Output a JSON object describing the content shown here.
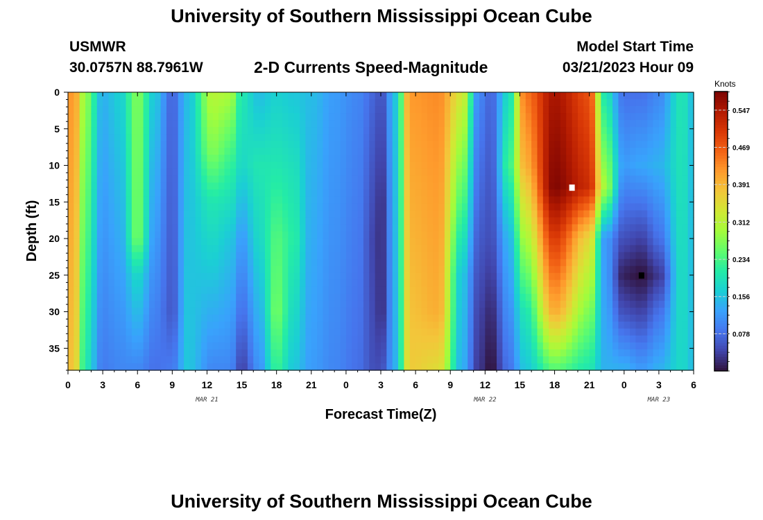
{
  "header": {
    "title": "University of Southern Mississippi Ocean Cube",
    "station": "USMWR",
    "coords": "30.0757N  88.7961W",
    "subtitle": "2-D Currents Speed-Magnitude",
    "model_start_label": "Model Start Time",
    "model_start_value": "03/21/2023 Hour 09"
  },
  "footer": {
    "title": "University of Southern Mississippi Ocean Cube"
  },
  "chart_data": {
    "type": "heatmap",
    "title": "2-D Currents Speed-Magnitude",
    "xlabel": "Forecast Time(Z)",
    "ylabel": "Depth (ft)",
    "x_tick_labels": [
      "0",
      "3",
      "6",
      "9",
      "12",
      "15",
      "18",
      "21",
      "0",
      "3",
      "6",
      "9",
      "12",
      "15",
      "18",
      "21",
      "0",
      "3",
      "6"
    ],
    "x_range_hours": [
      0,
      54
    ],
    "date_labels": [
      {
        "text": "MAR 21",
        "hour": 12
      },
      {
        "text": "MAR 22",
        "hour": 36
      },
      {
        "text": "MAR 23",
        "hour": 51
      }
    ],
    "y_tick_labels": [
      "0",
      "5",
      "10",
      "15",
      "20",
      "25",
      "30",
      "35"
    ],
    "y_range": [
      0,
      38
    ],
    "y_inverted": true,
    "colorbar": {
      "unit": "Knots",
      "range": [
        0,
        0.586
      ],
      "tick_values": [
        0.078,
        0.156,
        0.234,
        0.312,
        0.391,
        0.469,
        0.547
      ],
      "tick_labels": [
        "0.078",
        "0.156",
        "0.234",
        "0.312",
        "0.391",
        "0.469",
        "0.547"
      ],
      "colormap": [
        "#30123b",
        "#4145ab",
        "#4675ed",
        "#39a2fc",
        "#1bcfd4",
        "#24eca6",
        "#61fc6c",
        "#a4fc3b",
        "#d1e834",
        "#f3c63a",
        "#fe9b2d",
        "#f36315",
        "#d93806",
        "#b11901",
        "#7a0402"
      ]
    },
    "speed_nodes": [
      {
        "hour": 0.5,
        "profile": [
          [
            0,
            0.42
          ],
          [
            38,
            0.38
          ]
        ]
      },
      {
        "hour": 1.5,
        "profile": [
          [
            0,
            0.28
          ],
          [
            38,
            0.2
          ]
        ]
      },
      {
        "hour": 3,
        "profile": [
          [
            0,
            0.14
          ],
          [
            38,
            0.09
          ]
        ]
      },
      {
        "hour": 4.5,
        "profile": [
          [
            0,
            0.17
          ],
          [
            38,
            0.1
          ]
        ]
      },
      {
        "hour": 6,
        "profile": [
          [
            0,
            0.27
          ],
          [
            20,
            0.26
          ],
          [
            25,
            0.18
          ],
          [
            38,
            0.1
          ]
        ]
      },
      {
        "hour": 7.5,
        "profile": [
          [
            0,
            0.16
          ],
          [
            38,
            0.08
          ]
        ]
      },
      {
        "hour": 9,
        "profile": [
          [
            0,
            0.07
          ],
          [
            30,
            0.06
          ],
          [
            38,
            0.09
          ]
        ]
      },
      {
        "hour": 10.3,
        "profile": [
          [
            0,
            0.15
          ],
          [
            38,
            0.16
          ]
        ]
      },
      {
        "hour": 12.5,
        "profile": [
          [
            0,
            0.31
          ],
          [
            8,
            0.27
          ],
          [
            15,
            0.2
          ],
          [
            25,
            0.16
          ],
          [
            38,
            0.1
          ]
        ]
      },
      {
        "hour": 14,
        "profile": [
          [
            0,
            0.3
          ],
          [
            10,
            0.22
          ],
          [
            20,
            0.16
          ],
          [
            38,
            0.1
          ]
        ]
      },
      {
        "hour": 15,
        "profile": [
          [
            0,
            0.2
          ],
          [
            10,
            0.18
          ],
          [
            20,
            0.12
          ],
          [
            30,
            0.08
          ],
          [
            38,
            0.04
          ]
        ]
      },
      {
        "hour": 16.5,
        "profile": [
          [
            0,
            0.15
          ],
          [
            10,
            0.2
          ],
          [
            20,
            0.18
          ],
          [
            38,
            0.11
          ]
        ]
      },
      {
        "hour": 18,
        "profile": [
          [
            0,
            0.17
          ],
          [
            10,
            0.2
          ],
          [
            20,
            0.24
          ],
          [
            30,
            0.26
          ],
          [
            38,
            0.22
          ]
        ]
      },
      {
        "hour": 19.5,
        "profile": [
          [
            0,
            0.16
          ],
          [
            10,
            0.19
          ],
          [
            20,
            0.21
          ],
          [
            38,
            0.16
          ]
        ]
      },
      {
        "hour": 21,
        "profile": [
          [
            0,
            0.15
          ],
          [
            38,
            0.12
          ]
        ]
      },
      {
        "hour": 23,
        "profile": [
          [
            0,
            0.12
          ],
          [
            38,
            0.1
          ]
        ]
      },
      {
        "hour": 25,
        "profile": [
          [
            0,
            0.1
          ],
          [
            38,
            0.08
          ]
        ]
      },
      {
        "hour": 26.5,
        "profile": [
          [
            0,
            0.07
          ],
          [
            20,
            0.04
          ],
          [
            38,
            0.05
          ]
        ]
      },
      {
        "hour": 27,
        "profile": [
          [
            0,
            0.05
          ],
          [
            15,
            0.02
          ],
          [
            30,
            0.02
          ],
          [
            38,
            0.05
          ]
        ]
      },
      {
        "hour": 28.3,
        "profile": [
          [
            0,
            0.16
          ],
          [
            38,
            0.14
          ]
        ]
      },
      {
        "hour": 29.5,
        "profile": [
          [
            0,
            0.42
          ],
          [
            38,
            0.37
          ]
        ]
      },
      {
        "hour": 32,
        "profile": [
          [
            0,
            0.43
          ],
          [
            30,
            0.4
          ],
          [
            38,
            0.35
          ]
        ]
      },
      {
        "hour": 34,
        "profile": [
          [
            0,
            0.34
          ],
          [
            15,
            0.24
          ],
          [
            25,
            0.16
          ],
          [
            38,
            0.14
          ]
        ]
      },
      {
        "hour": 35.5,
        "profile": [
          [
            0,
            0.1
          ],
          [
            20,
            0.06
          ],
          [
            30,
            0.04
          ],
          [
            38,
            0.03
          ]
        ]
      },
      {
        "hour": 36.5,
        "profile": [
          [
            0,
            0.07
          ],
          [
            20,
            0.05
          ],
          [
            30,
            0.02
          ],
          [
            38,
            0.0
          ]
        ]
      },
      {
        "hour": 38,
        "profile": [
          [
            0,
            0.18
          ],
          [
            10,
            0.22
          ],
          [
            20,
            0.14
          ],
          [
            38,
            0.08
          ]
        ]
      },
      {
        "hour": 39.5,
        "profile": [
          [
            0,
            0.45
          ],
          [
            10,
            0.4
          ],
          [
            20,
            0.3
          ],
          [
            30,
            0.2
          ],
          [
            38,
            0.16
          ]
        ]
      },
      {
        "hour": 42,
        "profile": [
          [
            0,
            0.55
          ],
          [
            13,
            0.58
          ],
          [
            20,
            0.5
          ],
          [
            30,
            0.4
          ],
          [
            38,
            0.24
          ]
        ]
      },
      {
        "hour": 45,
        "profile": [
          [
            0,
            0.48
          ],
          [
            13,
            0.52
          ],
          [
            20,
            0.36
          ],
          [
            38,
            0.2
          ]
        ]
      },
      {
        "hour": 46.3,
        "profile": [
          [
            0,
            0.2
          ],
          [
            13,
            0.3
          ],
          [
            20,
            0.12
          ],
          [
            38,
            0.14
          ]
        ]
      },
      {
        "hour": 48,
        "profile": [
          [
            0,
            0.08
          ],
          [
            10,
            0.12
          ],
          [
            20,
            0.05
          ],
          [
            25,
            0.01
          ],
          [
            30,
            0.05
          ],
          [
            38,
            0.14
          ]
        ]
      },
      {
        "hour": 49.5,
        "profile": [
          [
            0,
            0.08
          ],
          [
            10,
            0.13
          ],
          [
            20,
            0.04
          ],
          [
            25,
            0.0
          ],
          [
            30,
            0.04
          ],
          [
            38,
            0.12
          ]
        ]
      },
      {
        "hour": 51,
        "profile": [
          [
            0,
            0.1
          ],
          [
            10,
            0.14
          ],
          [
            20,
            0.08
          ],
          [
            25,
            0.03
          ],
          [
            30,
            0.08
          ],
          [
            38,
            0.14
          ]
        ]
      },
      {
        "hour": 53,
        "profile": [
          [
            0,
            0.2
          ],
          [
            38,
            0.18
          ]
        ]
      },
      {
        "hour": 54,
        "profile": [
          [
            0,
            0.15
          ],
          [
            38,
            0.15
          ]
        ]
      }
    ],
    "markers": [
      {
        "hour": 43.5,
        "depth": 13,
        "color": "#ffffff"
      },
      {
        "hour": 49.5,
        "depth": 25,
        "color": "#000000"
      }
    ]
  }
}
